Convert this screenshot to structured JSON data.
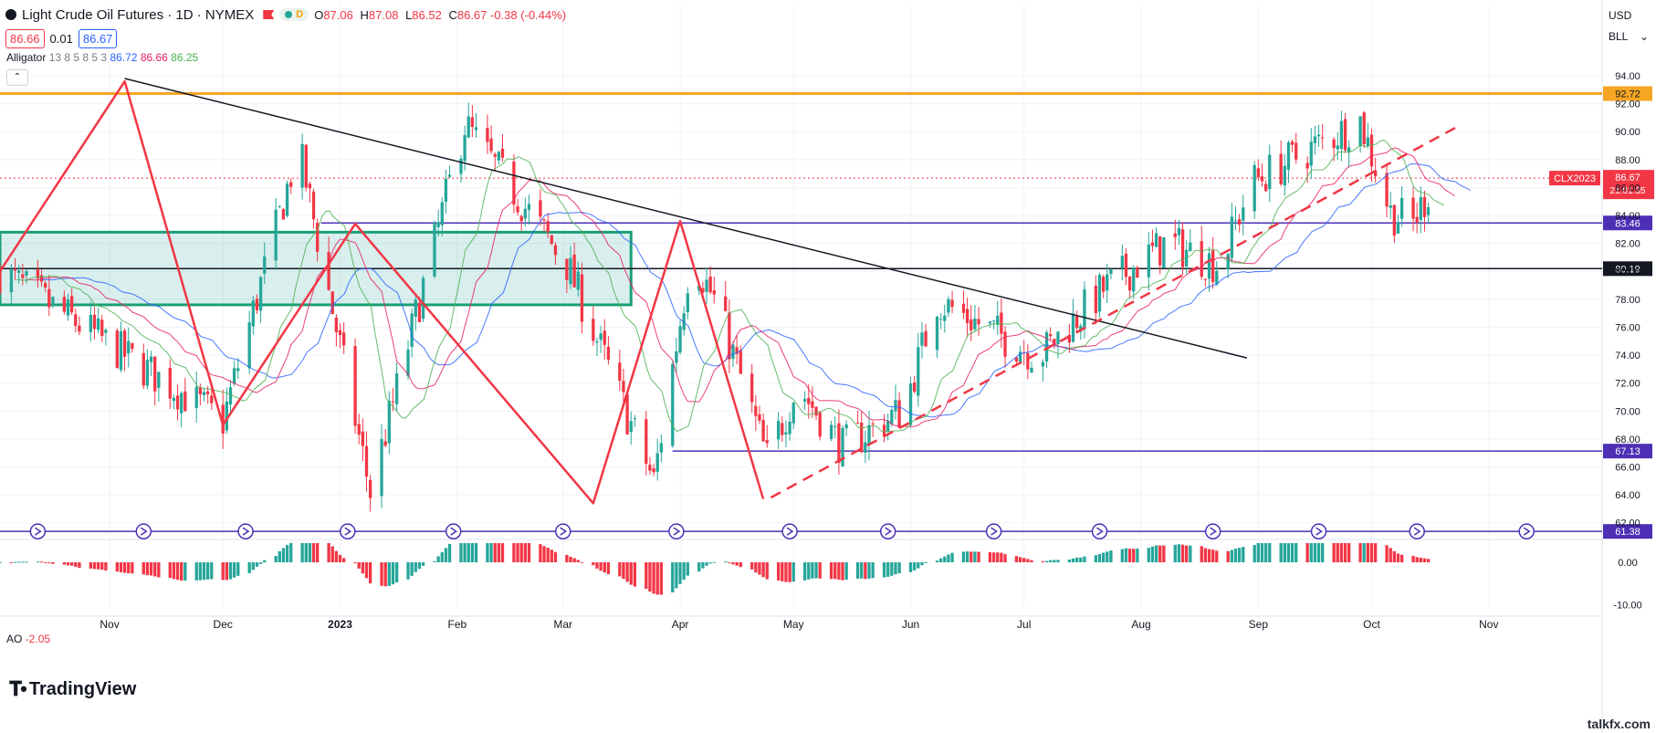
{
  "header": {
    "title": "Light Crude Oil Futures · 1D · NYMEX",
    "market_status": "D",
    "ohlc": [
      {
        "k": "O",
        "v": "87.06"
      },
      {
        "k": "H",
        "v": "87.08"
      },
      {
        "k": "L",
        "v": "86.52"
      },
      {
        "k": "C",
        "v": "86.67 -0.38 (-0.44%)"
      }
    ]
  },
  "quote": {
    "sell": "86.66",
    "spread": "0.01",
    "buy": "86.67"
  },
  "indicator": {
    "name": "Alligator",
    "params": "13 8 5 8 5 3",
    "jaw": "86.72",
    "teeth": "86.66",
    "lips": "86.25"
  },
  "oscillator": {
    "name": "AO",
    "value": "-2.05"
  },
  "selectors": {
    "currency": "USD",
    "unit": "BLL"
  },
  "brand": "TradingView",
  "watermark": "talkfx.com",
  "colors": {
    "up": "#26a69a",
    "down": "#f23645",
    "jaw": "#2962ff",
    "teeth": "#e91e63",
    "lips": "#4caf50",
    "resistance": "#f5a623",
    "level": "#4d2fb5",
    "pattern": "#f23645",
    "zone": "#26a69a"
  },
  "chart_data": {
    "type": "candlestick",
    "symbol": "CLX2023",
    "last_price": "86.67",
    "countdown": "21:01:35",
    "y_range": [
      61.0,
      95.5
    ],
    "y_ticks": [
      "94.00",
      "92.00",
      "90.00",
      "88.00",
      "86.00",
      "84.00",
      "82.00",
      "80.00",
      "78.00",
      "76.00",
      "74.00",
      "72.00",
      "70.00",
      "68.00",
      "66.00",
      "64.00",
      "62.00"
    ],
    "x_labels": [
      {
        "label": "Nov",
        "day": 5
      },
      {
        "label": "Dec",
        "day": 35
      },
      {
        "label": "2023",
        "day": 66
      },
      {
        "label": "Feb",
        "day": 97
      },
      {
        "label": "Mar",
        "day": 125
      },
      {
        "label": "Apr",
        "day": 156
      },
      {
        "label": "May",
        "day": 186
      },
      {
        "label": "Jun",
        "day": 217
      },
      {
        "label": "Jul",
        "day": 247
      },
      {
        "label": "Aug",
        "day": 278
      },
      {
        "label": "Sep",
        "day": 309
      },
      {
        "label": "Oct",
        "day": 339
      },
      {
        "label": "Nov",
        "day": 370
      }
    ],
    "x_range_days": [
      -24,
      400
    ],
    "horizontal_levels": [
      {
        "value": 92.72,
        "label": "92.72",
        "kind": "resistance"
      },
      {
        "value": 83.46,
        "label": "83.46",
        "kind": "level",
        "from_day": 61
      },
      {
        "value": 80.19,
        "label": "80.19",
        "kind": "black"
      },
      {
        "value": 67.13,
        "label": "67.13",
        "kind": "level",
        "from_day": 154
      },
      {
        "value": 61.38,
        "label": "61.38",
        "kind": "level"
      }
    ],
    "zone": {
      "day_start": -24,
      "day_end": 143,
      "low": 77.6,
      "high": 82.8
    },
    "trendline": [
      {
        "day": 9,
        "v": 93.8
      },
      {
        "day": 306,
        "v": 73.8
      }
    ],
    "zigzag": [
      {
        "day": -24,
        "v": 80.0
      },
      {
        "day": 9,
        "v": 93.6
      },
      {
        "day": 35,
        "v": 69.0
      },
      {
        "day": 70,
        "v": 83.4
      },
      {
        "day": 133,
        "v": 63.4
      },
      {
        "day": 156,
        "v": 83.6
      },
      {
        "day": 178,
        "v": 63.7
      }
    ],
    "dashed_trend": [
      {
        "day": 180,
        "v": 63.8
      },
      {
        "day": 362,
        "v": 90.4
      }
    ],
    "anchors": [
      {
        "day": -24,
        "v": 80.0
      },
      {
        "day": 35,
        "v": 69.3
      },
      {
        "day": 55,
        "v": 88.9
      },
      {
        "day": 74,
        "v": 64.2
      },
      {
        "day": 99,
        "v": 90.5
      },
      {
        "day": 126,
        "v": 80.5
      },
      {
        "day": 149,
        "v": 65.0
      },
      {
        "day": 159,
        "v": 81.3
      },
      {
        "day": 166,
        "v": 77.4
      },
      {
        "day": 179,
        "v": 66.6
      },
      {
        "day": 187,
        "v": 71.8
      },
      {
        "day": 199,
        "v": 67.4
      },
      {
        "day": 215,
        "v": 70.1
      },
      {
        "day": 224,
        "v": 77.9
      },
      {
        "day": 251,
        "v": 73.9
      },
      {
        "day": 268,
        "v": 78.7
      },
      {
        "day": 285,
        "v": 82.1
      },
      {
        "day": 299,
        "v": 80.4
      },
      {
        "day": 307,
        "v": 86.3
      },
      {
        "day": 336,
        "v": 90.8
      },
      {
        "day": 344,
        "v": 84.2
      },
      {
        "day": 350,
        "v": 83.5
      },
      {
        "day": 356,
        "v": 86.7
      }
    ],
    "volatility": 1.9,
    "ao": {
      "range": [
        -10.5,
        4.5
      ],
      "ticks": [
        "0.00",
        "-10.00"
      ]
    },
    "cycle_markers_day": [
      -14,
      14,
      41,
      68,
      96,
      125,
      155,
      185,
      211,
      239,
      267,
      297,
      325,
      351,
      380
    ]
  }
}
